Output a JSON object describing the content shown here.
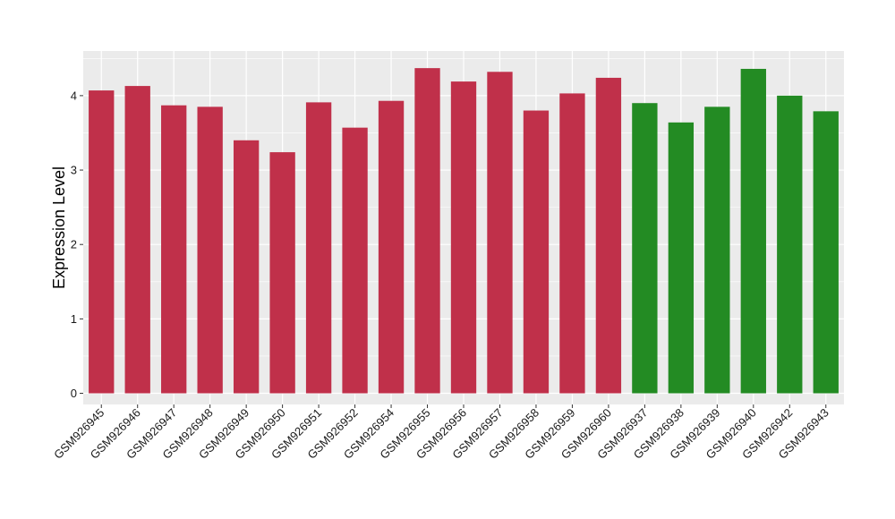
{
  "chart_data": {
    "type": "bar",
    "title": "",
    "xlabel": "",
    "ylabel": "Expression Level",
    "ylim": [
      -0.15,
      4.6
    ],
    "yticks": [
      0,
      1,
      2,
      3,
      4
    ],
    "grid": true,
    "legend": "none",
    "background_color": "#ebebeb",
    "grid_color": "#ffffff",
    "group_colors": {
      "red": "#c0304a",
      "green": "#238b23"
    },
    "categories": [
      "GSM926945",
      "GSM926946",
      "GSM926947",
      "GSM926948",
      "GSM926949",
      "GSM926950",
      "GSM926951",
      "GSM926952",
      "GSM926954",
      "GSM926955",
      "GSM926956",
      "GSM926957",
      "GSM926958",
      "GSM926959",
      "GSM926960",
      "GSM926937",
      "GSM926938",
      "GSM926939",
      "GSM926940",
      "GSM926942",
      "GSM926943"
    ],
    "values": [
      4.07,
      4.13,
      3.87,
      3.85,
      3.4,
      3.24,
      3.91,
      3.57,
      3.93,
      4.37,
      4.19,
      4.32,
      3.8,
      4.03,
      4.24,
      3.9,
      3.64,
      3.85,
      4.36,
      4.0,
      3.79
    ],
    "groups": [
      "red",
      "red",
      "red",
      "red",
      "red",
      "red",
      "red",
      "red",
      "red",
      "red",
      "red",
      "red",
      "red",
      "red",
      "red",
      "green",
      "green",
      "green",
      "green",
      "green",
      "green"
    ]
  }
}
